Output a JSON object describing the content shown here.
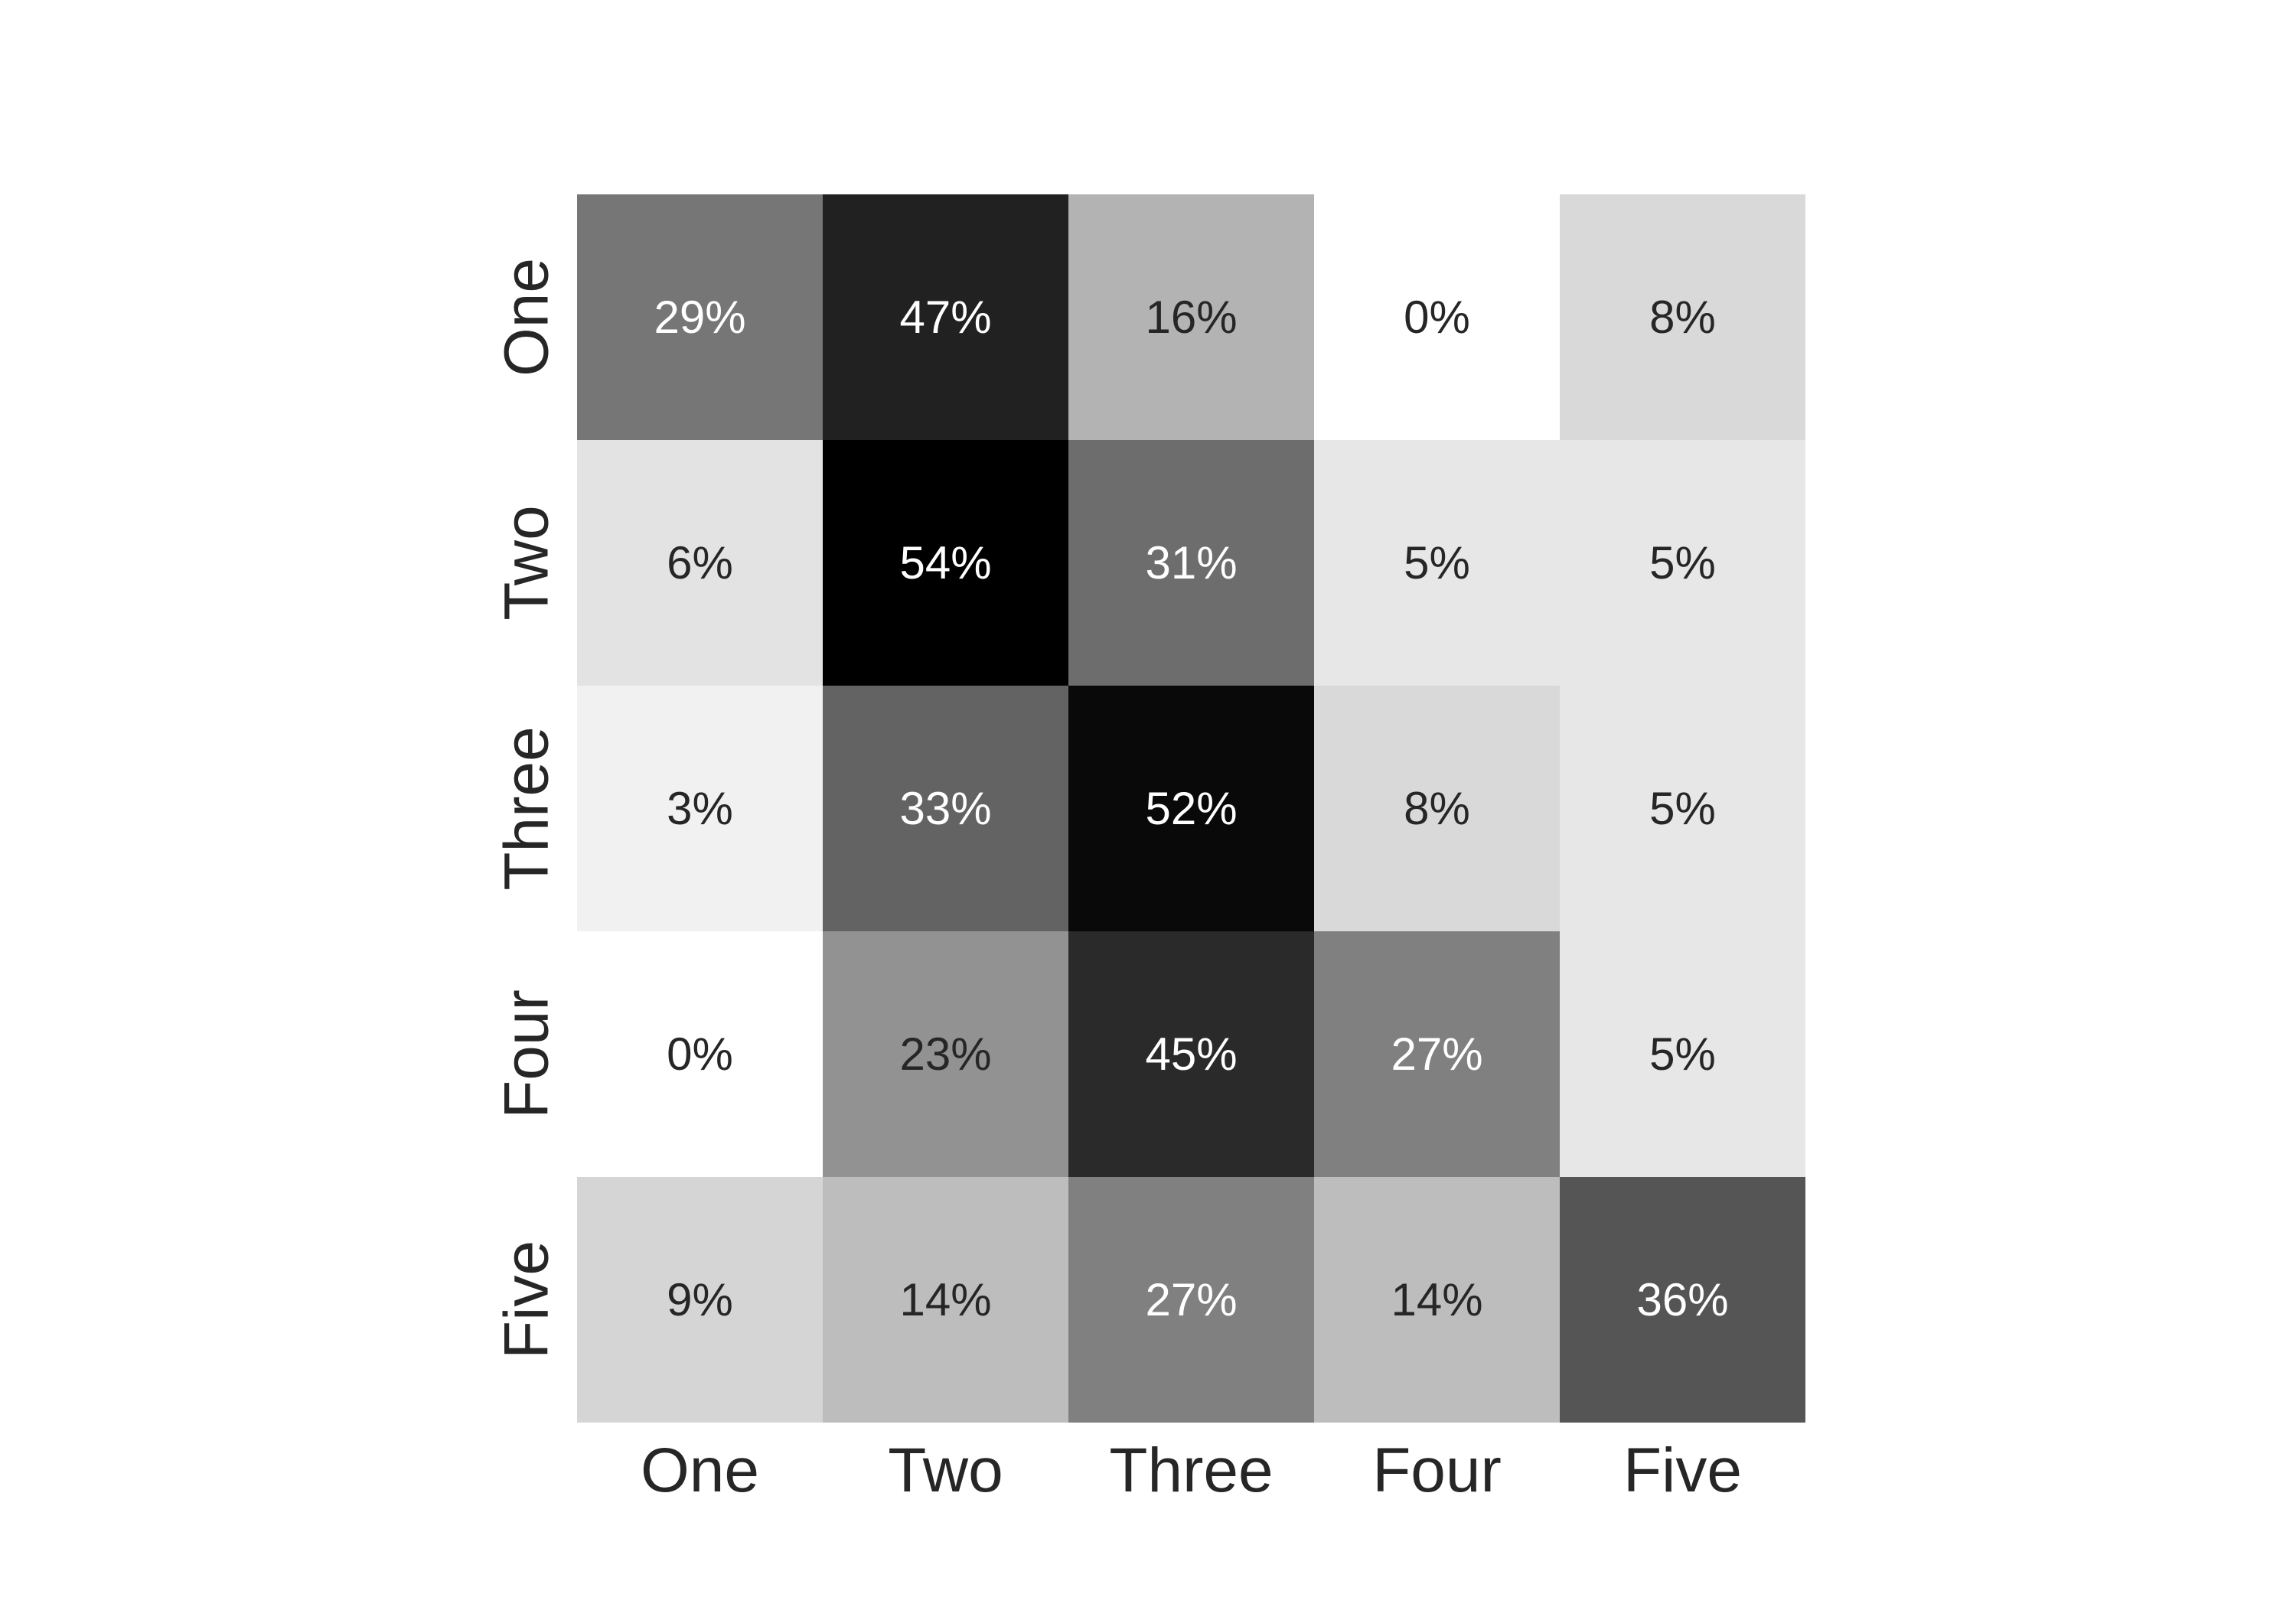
{
  "chart_data": {
    "type": "heatmap",
    "title": "",
    "xlabel": "",
    "ylabel": "",
    "x_categories": [
      "One",
      "Two",
      "Three",
      "Four",
      "Five"
    ],
    "y_categories": [
      "One",
      "Two",
      "Three",
      "Four",
      "Five"
    ],
    "values": [
      [
        29,
        47,
        16,
        0,
        8
      ],
      [
        6,
        54,
        31,
        5,
        5
      ],
      [
        3,
        33,
        52,
        8,
        5
      ],
      [
        0,
        23,
        45,
        27,
        5
      ],
      [
        9,
        14,
        27,
        14,
        36
      ]
    ],
    "value_format": "percent",
    "color_scale": {
      "low_color": "#ffffff",
      "high_color": "#000000",
      "min": 0,
      "max": 54
    },
    "colorbar": false,
    "grid": false
  }
}
